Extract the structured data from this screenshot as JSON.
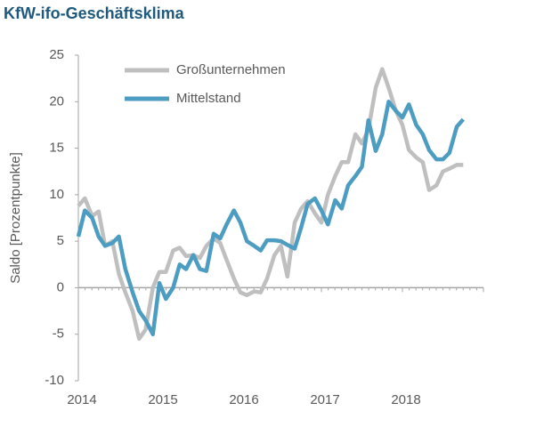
{
  "chart_data": {
    "type": "line",
    "title": "KfW-ifo-Geschäftsklima",
    "y_label": "Saldo [Prozentpunkte]",
    "x": [
      2014.0,
      2014.08,
      2014.17,
      2014.25,
      2014.33,
      2014.42,
      2014.5,
      2014.58,
      2014.67,
      2014.75,
      2014.83,
      2014.92,
      2015.0,
      2015.08,
      2015.17,
      2015.25,
      2015.33,
      2015.42,
      2015.5,
      2015.58,
      2015.67,
      2015.75,
      2015.83,
      2015.92,
      2016.0,
      2016.08,
      2016.17,
      2016.25,
      2016.33,
      2016.42,
      2016.5,
      2016.58,
      2016.67,
      2016.75,
      2016.83,
      2016.92,
      2017.0,
      2017.08,
      2017.17,
      2017.25,
      2017.33,
      2017.42,
      2017.5,
      2017.58,
      2017.67,
      2017.75,
      2017.83,
      2017.92,
      2018.0,
      2018.08,
      2018.17,
      2018.25,
      2018.33,
      2018.42,
      2018.5,
      2018.58,
      2018.67,
      2018.75
    ],
    "series": [
      {
        "name": "Großunternehmen",
        "color": "#bfbfbf",
        "values": [
          8.8,
          9.6,
          7.7,
          8.2,
          4.5,
          5,
          1.5,
          -0.5,
          -2.5,
          -5.5,
          -4.5,
          0,
          1.7,
          1.7,
          4,
          4.3,
          3.4,
          3.5,
          3.2,
          4.5,
          5.3,
          4.8,
          3,
          1,
          -0.5,
          -0.8,
          -0.4,
          -0.5,
          1,
          3.5,
          4.5,
          1.2,
          7,
          8.5,
          9.3,
          8,
          7,
          10,
          12,
          13.5,
          13.5,
          16.5,
          15.5,
          17,
          21.5,
          23.5,
          21.5,
          19,
          17.5,
          14.8,
          14,
          13.5,
          10.5,
          11,
          12.5,
          12.8,
          13.2,
          13.2
        ]
      },
      {
        "name": "Mittelstand",
        "color": "#4c9dc1",
        "values": [
          5.5,
          8.3,
          7.5,
          5.5,
          4.5,
          4.8,
          5.5,
          2,
          -0.5,
          -2.5,
          -3.5,
          -5,
          0.5,
          -1.2,
          0,
          2.5,
          2,
          3.5,
          2,
          1.8,
          5.8,
          5.3,
          6.8,
          8.3,
          7,
          5,
          4.5,
          4,
          5.1,
          5.1,
          5,
          4.6,
          4.2,
          6.5,
          9,
          9.6,
          8.3,
          6.8,
          9.4,
          8.5,
          11,
          12,
          13,
          18,
          14.7,
          16.5,
          20,
          19,
          18.3,
          19.7,
          17.5,
          16.5,
          14.8,
          13.8,
          13.8,
          14.5,
          17.3,
          18.1
        ]
      }
    ],
    "xlim": [
      2014,
      2019
    ],
    "xticks": [
      2014,
      2015,
      2016,
      2017,
      2018
    ],
    "ylim": [
      -10,
      25
    ],
    "yticks": [
      -10,
      -5,
      0,
      5,
      10,
      15,
      20,
      25
    ],
    "legend": "upper-left",
    "grid": false
  }
}
